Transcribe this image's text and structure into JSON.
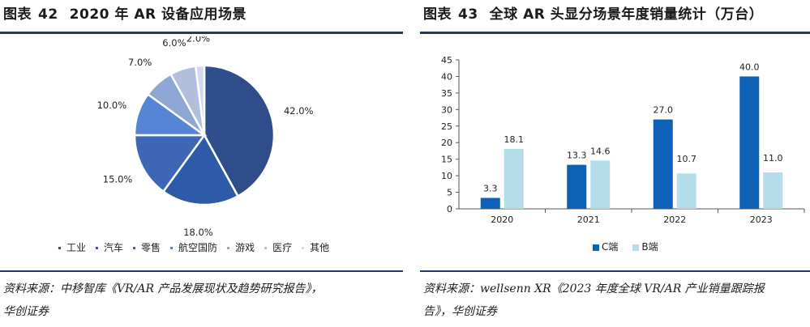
{
  "left": {
    "fig_label": "图表",
    "fig_num": "42",
    "title": "2020 年 AR 设备应用场景",
    "source_line1": "资料来源：中移智库《VR/AR 产品发展现状及趋势研究报告》，",
    "source_line2": "华创证券"
  },
  "right": {
    "fig_label": "图表",
    "fig_num": "43",
    "title": "全球 AR 头显分场景年度销量统计（万台）",
    "source_line1": "资料来源：wellsenn XR《2023 年度全球 VR/AR 产业销量跟踪报",
    "source_line2": "告》，华创证券"
  },
  "chart_data": [
    {
      "type": "pie",
      "title": "",
      "labels": [
        "工业",
        "汽车",
        "零售",
        "航空国防",
        "游戏",
        "医疗",
        "其他"
      ],
      "values": [
        42.0,
        18.0,
        15.0,
        10.0,
        7.0,
        6.0,
        2.0
      ],
      "value_labels": [
        "42.0%",
        "18.0%",
        "15.0%",
        "10.0%",
        "7.0%",
        "6.0%",
        "2.0%"
      ],
      "colors": [
        "#2f4d8a",
        "#2e5ba8",
        "#3d66b5",
        "#5585d4",
        "#8ea6d3",
        "#b2bfdc",
        "#d2d9e8"
      ],
      "legend_position": "bottom"
    },
    {
      "type": "bar",
      "title": "",
      "categories": [
        "2020",
        "2021",
        "2022",
        "2023"
      ],
      "series": [
        {
          "name": "C端",
          "values": [
            3.3,
            13.3,
            27.0,
            40.0
          ],
          "labels": [
            "3.3",
            "13.3",
            "27.0",
            "40.0"
          ],
          "color": "#0d62b8"
        },
        {
          "name": "B端",
          "values": [
            18.1,
            14.6,
            10.7,
            11.0
          ],
          "labels": [
            "18.1",
            "14.6",
            "10.7",
            "11.0"
          ],
          "color": "#b5dcea"
        }
      ],
      "ylim": [
        0,
        45
      ],
      "yticks": [
        "0",
        "5",
        "10",
        "15",
        "20",
        "25",
        "30",
        "35",
        "40",
        "45"
      ],
      "xlabel": "",
      "ylabel": "",
      "grid": false,
      "legend_position": "bottom"
    }
  ]
}
